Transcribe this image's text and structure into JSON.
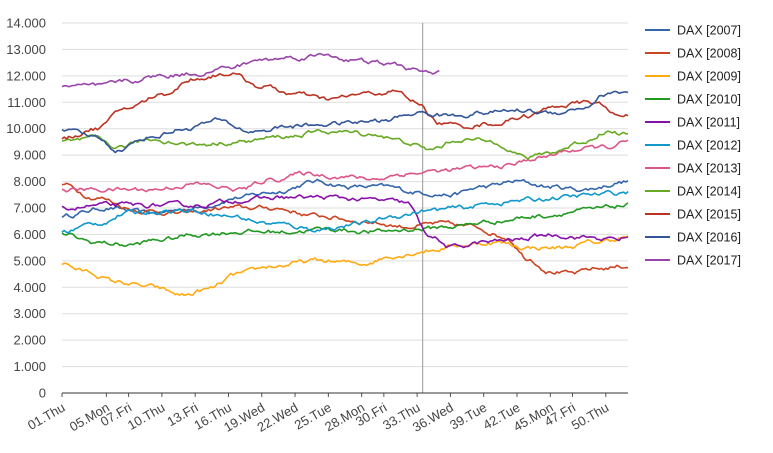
{
  "chart_data": {
    "type": "line",
    "title": "",
    "xlabel": "",
    "ylabel": "",
    "ylim": [
      0,
      14000
    ],
    "yticks": [
      "0",
      "1.000",
      "2.000",
      "3.000",
      "4.000",
      "5.000",
      "6.000",
      "7.000",
      "8.000",
      "9.000",
      "10.000",
      "11.000",
      "12.000",
      "13.000",
      "14.000"
    ],
    "xlim": [
      1,
      52
    ],
    "x_ticks": [
      {
        "week": 1,
        "label": "01.Thu"
      },
      {
        "week": 5,
        "label": "05.Mon"
      },
      {
        "week": 7,
        "label": "07.Fri"
      },
      {
        "week": 10,
        "label": "10.Thu"
      },
      {
        "week": 13,
        "label": "13.Fri"
      },
      {
        "week": 16,
        "label": "16.Thu"
      },
      {
        "week": 19,
        "label": "19.Wed"
      },
      {
        "week": 22,
        "label": "22.Wed"
      },
      {
        "week": 25,
        "label": "25.Tue"
      },
      {
        "week": 28,
        "label": "28.Mon"
      },
      {
        "week": 30,
        "label": "30.Fri"
      },
      {
        "week": 33,
        "label": "33.Thu"
      },
      {
        "week": 36,
        "label": "36.Wed"
      },
      {
        "week": 39,
        "label": "39.Tue"
      },
      {
        "week": 42,
        "label": "42.Tue"
      },
      {
        "week": 45,
        "label": "45.Mon"
      },
      {
        "week": 47,
        "label": "47.Fri"
      },
      {
        "week": 50,
        "label": "50.Thu"
      }
    ],
    "marker_line_week": 33.5,
    "legend_position": "right",
    "series": [
      {
        "name": "DAX [2007]",
        "color": "#3366aa",
        "end": 52,
        "keys": [
          [
            1,
            6700
          ],
          [
            5,
            7000
          ],
          [
            9,
            6800
          ],
          [
            13,
            7000
          ],
          [
            17,
            7400
          ],
          [
            20,
            7600
          ],
          [
            24,
            8000
          ],
          [
            27,
            7800
          ],
          [
            30,
            7800
          ],
          [
            33,
            7600
          ],
          [
            36,
            7500
          ],
          [
            39,
            7800
          ],
          [
            42,
            8000
          ],
          [
            45,
            7800
          ],
          [
            48,
            7700
          ],
          [
            52,
            8000
          ]
        ]
      },
      {
        "name": "DAX [2008]",
        "color": "#cc4422",
        "end": 52,
        "keys": [
          [
            1,
            7900
          ],
          [
            4,
            7400
          ],
          [
            8,
            6900
          ],
          [
            12,
            6800
          ],
          [
            16,
            7000
          ],
          [
            20,
            7000
          ],
          [
            24,
            6700
          ],
          [
            28,
            6500
          ],
          [
            32,
            6300
          ],
          [
            35,
            6400
          ],
          [
            38,
            6300
          ],
          [
            41,
            5900
          ],
          [
            43,
            5100
          ],
          [
            45,
            4600
          ],
          [
            47,
            4500
          ],
          [
            49,
            4700
          ],
          [
            52,
            4800
          ]
        ]
      },
      {
        "name": "DAX [2009]",
        "color": "#ffaa11",
        "end": 52,
        "keys": [
          [
            1,
            4900
          ],
          [
            3,
            4600
          ],
          [
            6,
            4200
          ],
          [
            9,
            4000
          ],
          [
            12,
            3700
          ],
          [
            14,
            3900
          ],
          [
            17,
            4500
          ],
          [
            20,
            4800
          ],
          [
            24,
            5000
          ],
          [
            28,
            4900
          ],
          [
            31,
            5200
          ],
          [
            34,
            5400
          ],
          [
            37,
            5600
          ],
          [
            40,
            5700
          ],
          [
            43,
            5500
          ],
          [
            46,
            5500
          ],
          [
            49,
            5700
          ],
          [
            52,
            5900
          ]
        ]
      },
      {
        "name": "DAX [2010]",
        "color": "#229922",
        "end": 52,
        "keys": [
          [
            1,
            6000
          ],
          [
            4,
            5700
          ],
          [
            7,
            5600
          ],
          [
            10,
            5800
          ],
          [
            13,
            6000
          ],
          [
            17,
            6100
          ],
          [
            21,
            6100
          ],
          [
            25,
            6200
          ],
          [
            29,
            6100
          ],
          [
            33,
            6200
          ],
          [
            36,
            6300
          ],
          [
            40,
            6500
          ],
          [
            44,
            6700
          ],
          [
            48,
            6900
          ],
          [
            52,
            7100
          ]
        ]
      },
      {
        "name": "DAX [2011]",
        "color": "#8811aa",
        "end": 52,
        "keys": [
          [
            1,
            7000
          ],
          [
            5,
            7100
          ],
          [
            9,
            7100
          ],
          [
            13,
            7100
          ],
          [
            17,
            7300
          ],
          [
            21,
            7400
          ],
          [
            25,
            7400
          ],
          [
            29,
            7300
          ],
          [
            32,
            7200
          ],
          [
            34,
            6000
          ],
          [
            36,
            5500
          ],
          [
            39,
            5700
          ],
          [
            42,
            5800
          ],
          [
            45,
            6000
          ],
          [
            48,
            5900
          ],
          [
            51,
            5800
          ],
          [
            52,
            5900
          ]
        ]
      },
      {
        "name": "DAX [2012]",
        "color": "#1199cc",
        "end": 52,
        "keys": [
          [
            1,
            6100
          ],
          [
            4,
            6400
          ],
          [
            7,
            6800
          ],
          [
            10,
            6900
          ],
          [
            13,
            6900
          ],
          [
            16,
            6700
          ],
          [
            20,
            6400
          ],
          [
            24,
            6200
          ],
          [
            28,
            6400
          ],
          [
            31,
            6700
          ],
          [
            34,
            6900
          ],
          [
            37,
            7000
          ],
          [
            40,
            7200
          ],
          [
            43,
            7300
          ],
          [
            46,
            7400
          ],
          [
            49,
            7500
          ],
          [
            52,
            7600
          ]
        ]
      },
      {
        "name": "DAX [2013]",
        "color": "#dd5588",
        "end": 52,
        "keys": [
          [
            1,
            7700
          ],
          [
            5,
            7700
          ],
          [
            9,
            7700
          ],
          [
            13,
            7900
          ],
          [
            17,
            7700
          ],
          [
            20,
            8100
          ],
          [
            23,
            8300
          ],
          [
            26,
            8200
          ],
          [
            29,
            8100
          ],
          [
            32,
            8300
          ],
          [
            35,
            8400
          ],
          [
            38,
            8500
          ],
          [
            41,
            8600
          ],
          [
            44,
            8900
          ],
          [
            47,
            9200
          ],
          [
            50,
            9300
          ],
          [
            52,
            9500
          ]
        ]
      },
      {
        "name": "DAX [2014]",
        "color": "#66aa22",
        "end": 52,
        "keys": [
          [
            1,
            9500
          ],
          [
            4,
            9600
          ],
          [
            6,
            9300
          ],
          [
            9,
            9600
          ],
          [
            13,
            9400
          ],
          [
            17,
            9500
          ],
          [
            21,
            9700
          ],
          [
            25,
            9900
          ],
          [
            29,
            9800
          ],
          [
            32,
            9500
          ],
          [
            34,
            9200
          ],
          [
            37,
            9600
          ],
          [
            40,
            9500
          ],
          [
            43,
            8900
          ],
          [
            45,
            9100
          ],
          [
            48,
            9500
          ],
          [
            50,
            9900
          ],
          [
            52,
            9800
          ]
        ]
      },
      {
        "name": "DAX [2015]",
        "color": "#bb3322",
        "end": 52,
        "keys": [
          [
            1,
            9600
          ],
          [
            4,
            10000
          ],
          [
            7,
            10800
          ],
          [
            10,
            11300
          ],
          [
            13,
            11900
          ],
          [
            16,
            12100
          ],
          [
            19,
            11600
          ],
          [
            22,
            11300
          ],
          [
            25,
            11100
          ],
          [
            28,
            11300
          ],
          [
            31,
            11400
          ],
          [
            33,
            11000
          ],
          [
            35,
            10200
          ],
          [
            37,
            10100
          ],
          [
            40,
            10200
          ],
          [
            43,
            10500
          ],
          [
            46,
            10900
          ],
          [
            49,
            11000
          ],
          [
            51,
            10500
          ],
          [
            52,
            10600
          ]
        ]
      },
      {
        "name": "DAX [2016]",
        "color": "#335599",
        "end": 52,
        "keys": [
          [
            1,
            9900
          ],
          [
            4,
            9700
          ],
          [
            6,
            9200
          ],
          [
            9,
            9700
          ],
          [
            12,
            10000
          ],
          [
            15,
            10300
          ],
          [
            18,
            9900
          ],
          [
            22,
            10100
          ],
          [
            26,
            10200
          ],
          [
            30,
            10300
          ],
          [
            33,
            10600
          ],
          [
            36,
            10500
          ],
          [
            39,
            10600
          ],
          [
            42,
            10700
          ],
          [
            45,
            10600
          ],
          [
            48,
            10800
          ],
          [
            50,
            11300
          ],
          [
            52,
            11400
          ]
        ]
      },
      {
        "name": "DAX [2017]",
        "color": "#9944aa",
        "end": 35,
        "keys": [
          [
            1,
            11600
          ],
          [
            4,
            11600
          ],
          [
            7,
            11800
          ],
          [
            10,
            12000
          ],
          [
            13,
            12100
          ],
          [
            16,
            12300
          ],
          [
            19,
            12600
          ],
          [
            22,
            12700
          ],
          [
            25,
            12800
          ],
          [
            27,
            12600
          ],
          [
            29,
            12500
          ],
          [
            31,
            12400
          ],
          [
            33,
            12200
          ],
          [
            35,
            12100
          ]
        ]
      }
    ]
  }
}
